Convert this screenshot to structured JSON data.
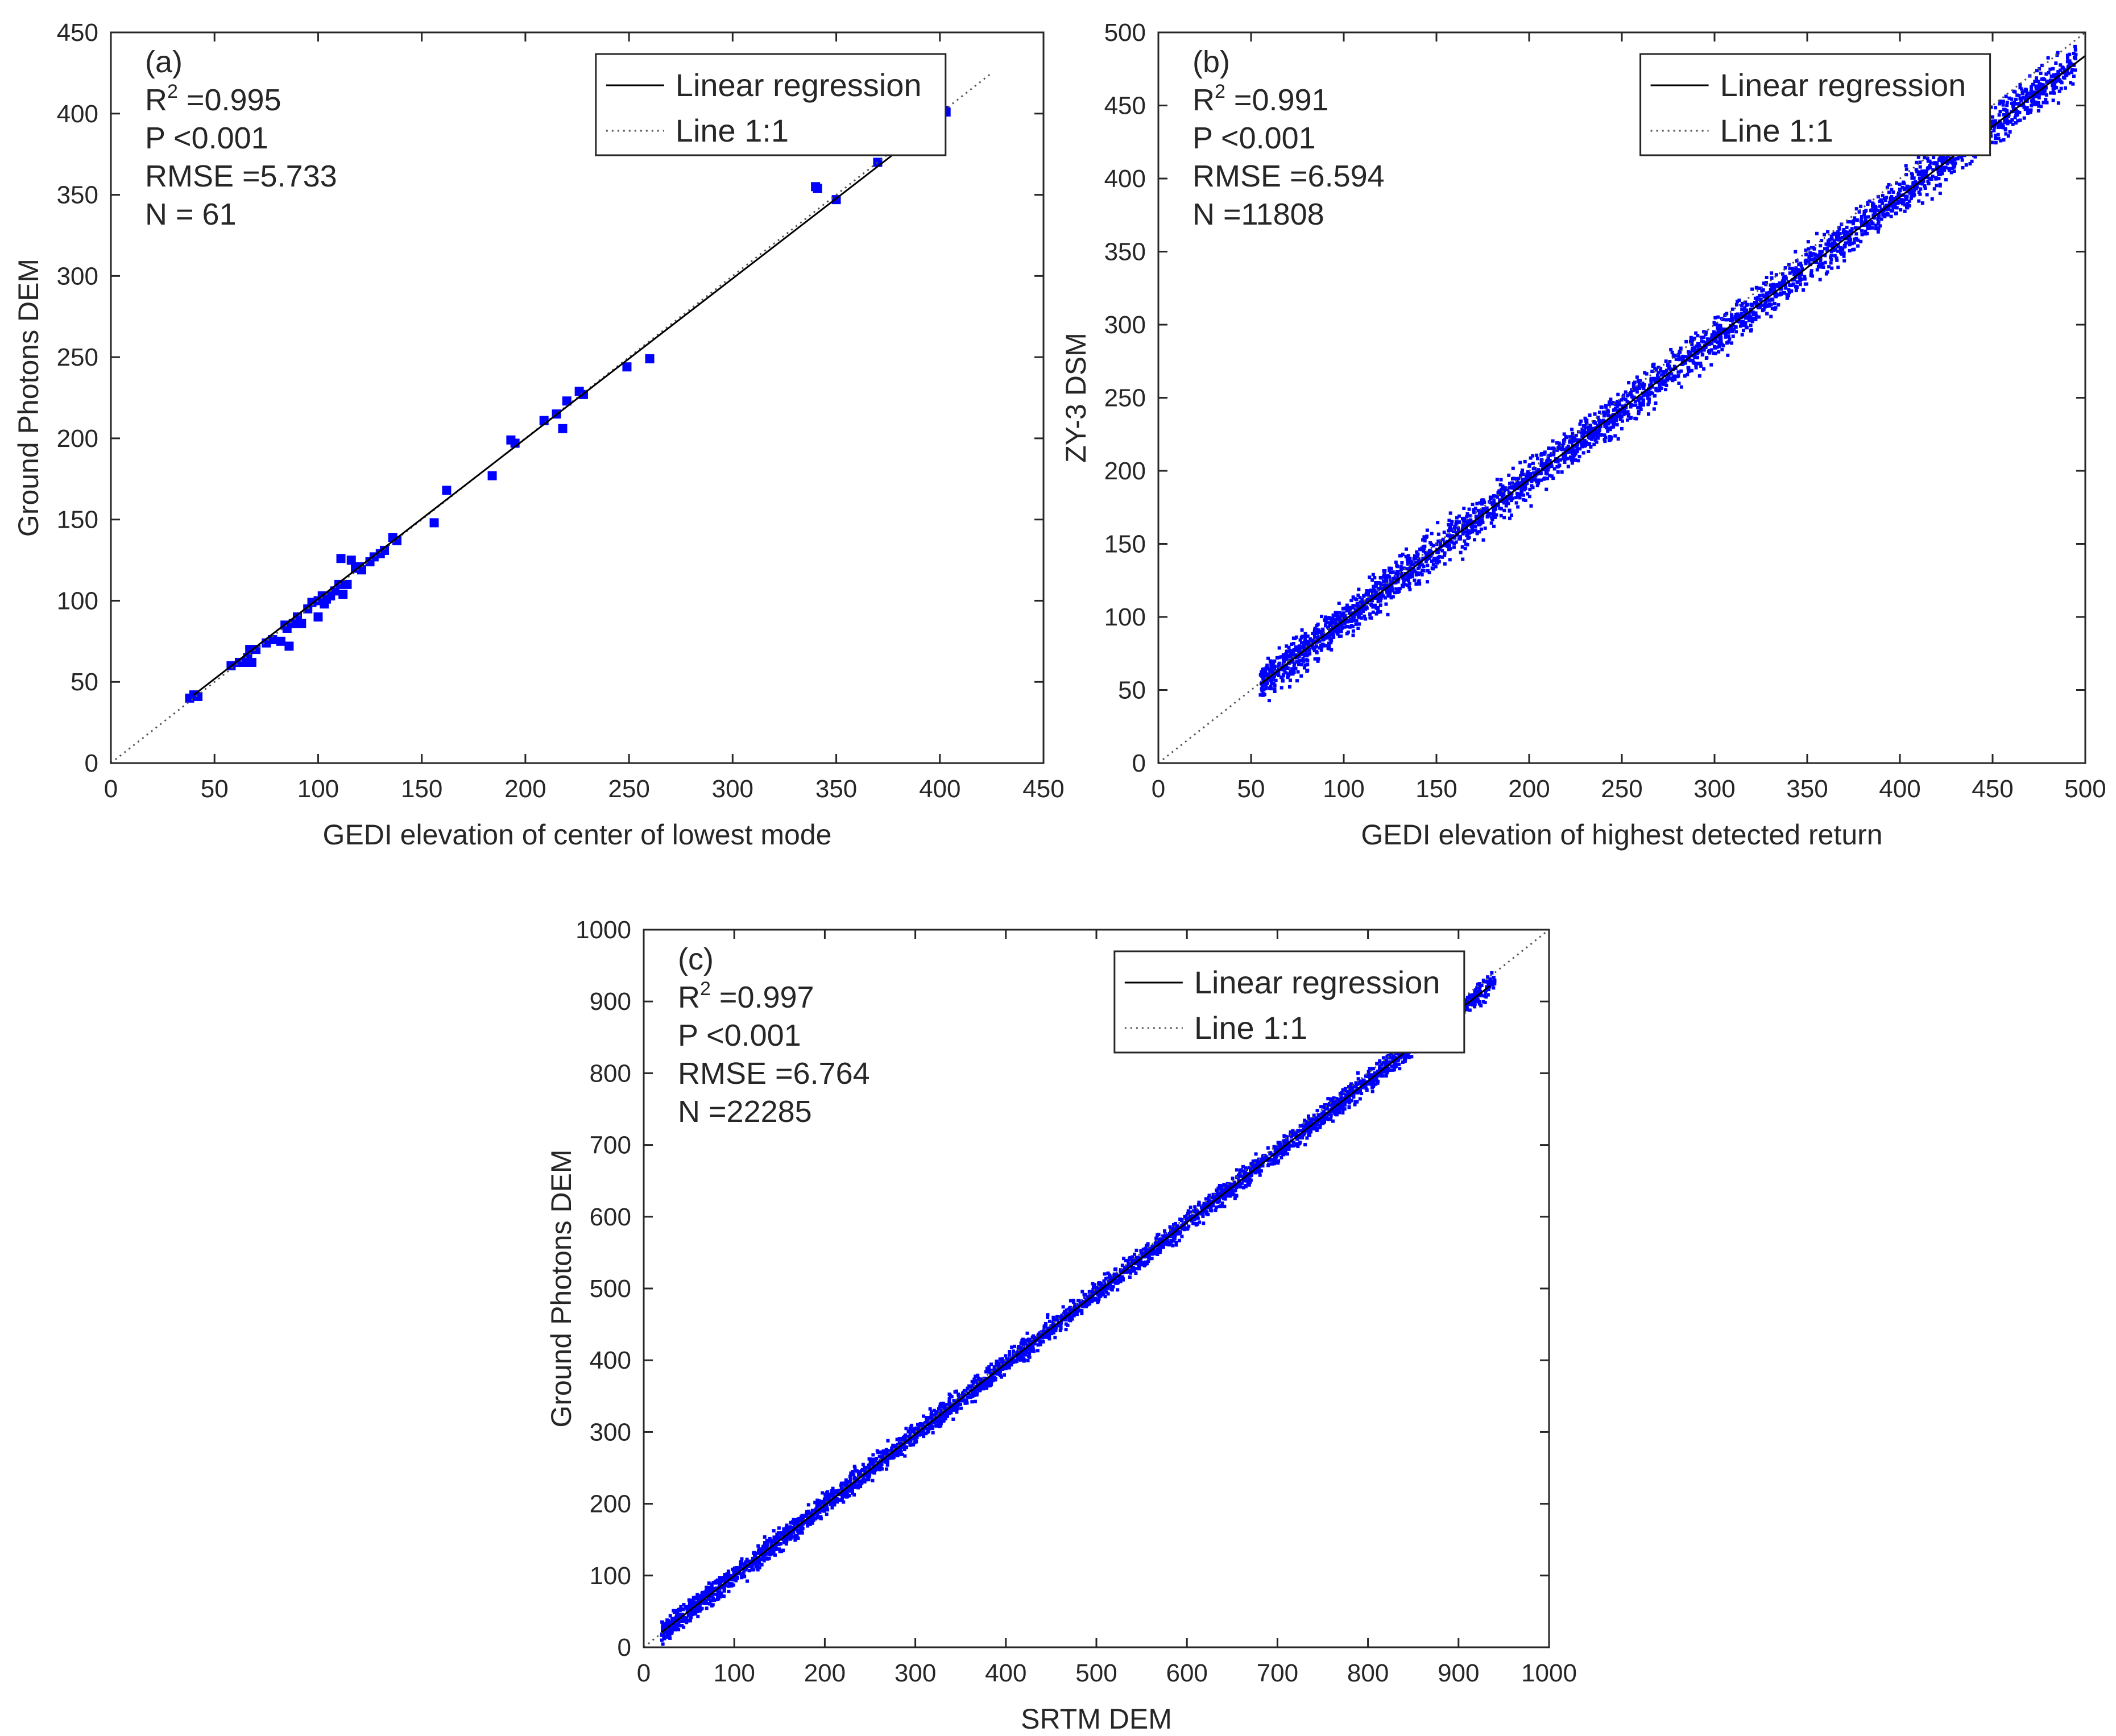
{
  "figure": {
    "description_panels": [
      "a",
      "b",
      "c"
    ]
  },
  "chart_data": [
    {
      "type": "scatter",
      "panel_label": "(a)",
      "title": "",
      "xlabel": "GEDI elevation of center of lowest mode",
      "ylabel": "Ground Photons DEM",
      "xlim": [
        0,
        450
      ],
      "ylim": [
        0,
        450
      ],
      "xticks": [
        "0",
        "50",
        "100",
        "150",
        "200",
        "250",
        "300",
        "350",
        "400",
        "450"
      ],
      "yticks": [
        "0",
        "50",
        "100",
        "150",
        "200",
        "250",
        "300",
        "350",
        "400",
        "450"
      ],
      "stats": {
        "r2_prefix": "R",
        "r2_sup": "2",
        "r2_value": " =0.995",
        "p": "P <0.001",
        "rmse": "RMSE =5.733",
        "n": "N = 61"
      },
      "legend": {
        "position": "top-right",
        "entries": [
          {
            "label": "Linear regression",
            "style": "solid"
          },
          {
            "label": "Line 1:1",
            "style": "dotted"
          }
        ]
      },
      "regression_line": {
        "x": [
          40,
          403
        ],
        "y": [
          42,
          400
        ]
      },
      "identity_line": {
        "x": [
          0,
          425
        ],
        "y": [
          0,
          425
        ]
      },
      "series": [
        {
          "name": "points",
          "color": "#0000ff",
          "marker": "square",
          "points": [
            [
              38,
              40
            ],
            [
              40,
              42
            ],
            [
              42,
              41
            ],
            [
              62,
              62
            ],
            [
              65,
              62
            ],
            [
              66,
              65
            ],
            [
              67,
              70
            ],
            [
              68,
              62
            ],
            [
              70,
              70
            ],
            [
              75,
              74
            ],
            [
              78,
              76
            ],
            [
              82,
              75
            ],
            [
              85,
              83
            ],
            [
              86,
              72
            ],
            [
              88,
              86
            ],
            [
              90,
              90
            ],
            [
              92,
              86
            ],
            [
              95,
              95
            ],
            [
              97,
              99
            ],
            [
              100,
              90
            ],
            [
              102,
              103
            ],
            [
              103,
              98
            ],
            [
              104,
              101
            ],
            [
              106,
              103
            ],
            [
              108,
              106
            ],
            [
              110,
              110
            ],
            [
              111,
              126
            ],
            [
              112,
              104
            ],
            [
              114,
              110
            ],
            [
              116,
              125
            ],
            [
              118,
              120
            ],
            [
              120,
              121
            ],
            [
              121,
              119
            ],
            [
              125,
              124
            ],
            [
              127,
              127
            ],
            [
              130,
              129
            ],
            [
              136,
              139
            ],
            [
              138,
              137
            ],
            [
              156,
              148
            ],
            [
              162,
              168
            ],
            [
              184,
              177
            ],
            [
              193,
              199
            ],
            [
              195,
              197
            ],
            [
              209,
              211
            ],
            [
              215,
              215
            ],
            [
              218,
              206
            ],
            [
              220,
              223
            ],
            [
              226,
              229
            ],
            [
              228,
              227
            ],
            [
              249,
              244
            ],
            [
              260,
              249
            ],
            [
              340,
              355
            ],
            [
              341,
              354
            ],
            [
              350,
              347
            ],
            [
              370,
              370
            ],
            [
              402,
              402
            ],
            [
              403,
              401
            ],
            [
              100,
              100
            ],
            [
              58,
              60
            ],
            [
              84,
              85
            ],
            [
              132,
              131
            ]
          ]
        }
      ]
    },
    {
      "type": "scatter",
      "panel_label": "(b)",
      "title": "",
      "xlabel": "GEDI elevation of highest detected return",
      "ylabel": "ZY-3 DSM",
      "xlim": [
        0,
        500
      ],
      "ylim": [
        0,
        500
      ],
      "xticks": [
        "0",
        "50",
        "100",
        "150",
        "200",
        "250",
        "300",
        "350",
        "400",
        "450",
        "500"
      ],
      "yticks": [
        "0",
        "50",
        "100",
        "150",
        "200",
        "250",
        "300",
        "350",
        "400",
        "450",
        "500"
      ],
      "stats": {
        "r2_prefix": "R",
        "r2_sup": "2",
        "r2_value": " =0.991",
        "p": "P <0.001",
        "rmse": "RMSE =6.594",
        "n": "N =11808"
      },
      "legend": {
        "position": "top-right",
        "entries": [
          {
            "label": "Linear regression",
            "style": "solid"
          },
          {
            "label": "Line 1:1",
            "style": "dotted"
          }
        ]
      },
      "regression_line": {
        "x": [
          55,
          500
        ],
        "y": [
          54,
          484
        ]
      },
      "identity_line": {
        "x": [
          0,
          500
        ],
        "y": [
          0,
          500
        ]
      },
      "series": [
        {
          "name": "points",
          "color": "#0000ff",
          "marker": "dot",
          "cloud": {
            "x_range": [
              55,
              495
            ],
            "slope": 0.966,
            "intercept": 0.9,
            "spread": 6.6,
            "count": 3200,
            "seed": 7
          }
        }
      ]
    },
    {
      "type": "scatter",
      "panel_label": "(c)",
      "title": "",
      "xlabel": "SRTM DEM",
      "ylabel": "Ground Photons DEM",
      "xlim": [
        0,
        1000
      ],
      "ylim": [
        0,
        1000
      ],
      "xticks": [
        "0",
        "100",
        "200",
        "300",
        "400",
        "500",
        "600",
        "700",
        "800",
        "900",
        "1000"
      ],
      "yticks": [
        "0",
        "100",
        "200",
        "300",
        "400",
        "500",
        "600",
        "700",
        "800",
        "900",
        "1000"
      ],
      "stats": {
        "r2_prefix": "R",
        "r2_sup": "2",
        "r2_value": " =0.997",
        "p": "P <0.001",
        "rmse": "RMSE =6.764",
        "n": "N =22285"
      },
      "legend": {
        "position": "top-right",
        "entries": [
          {
            "label": "Linear regression",
            "style": "solid"
          },
          {
            "label": "Line 1:1",
            "style": "dotted"
          }
        ]
      },
      "regression_line": {
        "x": [
          20,
          935
        ],
        "y": [
          21,
          922
        ]
      },
      "identity_line": {
        "x": [
          0,
          1000
        ],
        "y": [
          0,
          1000
        ]
      },
      "series": [
        {
          "name": "points",
          "color": "#0000ff",
          "marker": "dot",
          "cloud": {
            "x_range": [
              20,
              940
            ],
            "slope": 0.985,
            "intercept": 1.5,
            "spread": 7.5,
            "count": 3600,
            "seed": 13
          }
        }
      ]
    }
  ]
}
